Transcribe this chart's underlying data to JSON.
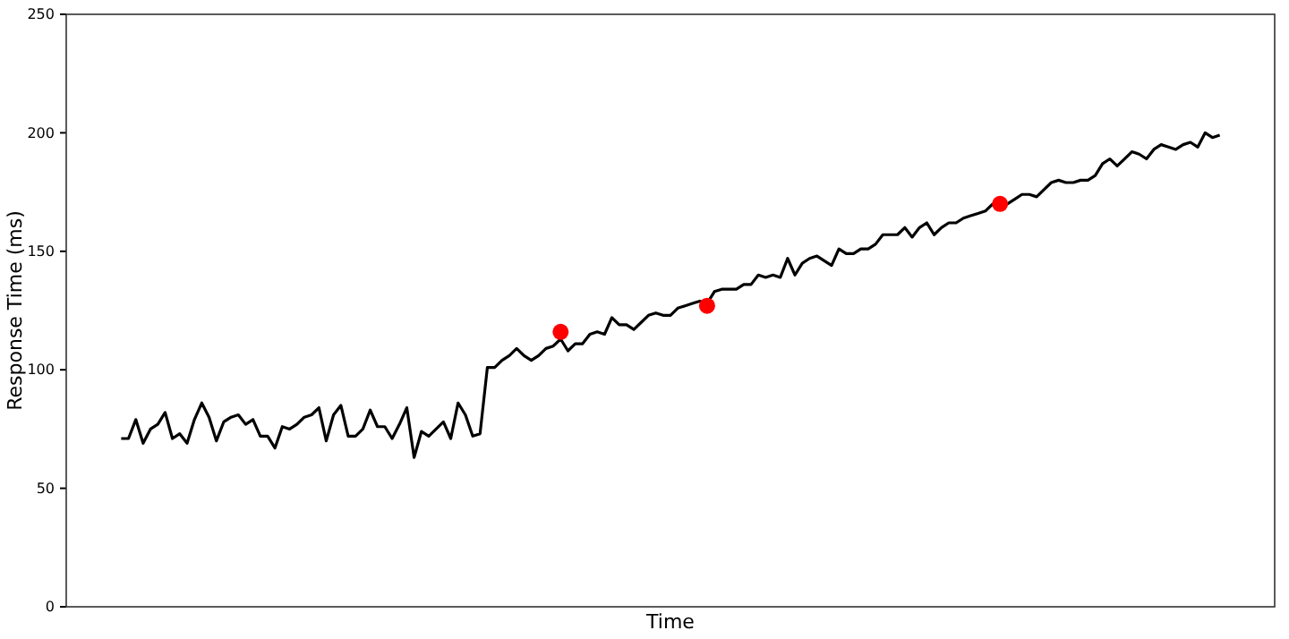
{
  "chart_data": {
    "type": "line",
    "xlabel": "Time",
    "ylabel": "Response Time (ms)",
    "categories": [
      null,
      null,
      null,
      null,
      null,
      null,
      null,
      null,
      null,
      null,
      null,
      null,
      null,
      null,
      null,
      null,
      null,
      null,
      null,
      null,
      null,
      null,
      null,
      null,
      null,
      null,
      null,
      null,
      null,
      null,
      null,
      null,
      null,
      null,
      null,
      null,
      null,
      null,
      null,
      null,
      null,
      null,
      null,
      null,
      null,
      null,
      null,
      null,
      null,
      null,
      null,
      null,
      null,
      null,
      null,
      null,
      null,
      null,
      null,
      null,
      null,
      null,
      null,
      null,
      null,
      null,
      null,
      null,
      null,
      null,
      null,
      null,
      null,
      null,
      null,
      null,
      null,
      null,
      null,
      null,
      null,
      null,
      null,
      null,
      null,
      null,
      null,
      null,
      null,
      null,
      null,
      null,
      null,
      null,
      null,
      null,
      null,
      null,
      null,
      null,
      null,
      null,
      null,
      null,
      null,
      null,
      null,
      null,
      null,
      null,
      null,
      null,
      null,
      null,
      null,
      null,
      null,
      null,
      null,
      null,
      null,
      null,
      null,
      null,
      null,
      null,
      null,
      null,
      null,
      null,
      null,
      null,
      null,
      null,
      null,
      null,
      null,
      null,
      null,
      null,
      null,
      null,
      null,
      null,
      null,
      null,
      null,
      null,
      null,
      null,
      null
    ],
    "ylim": [
      0,
      250
    ],
    "yticks": [
      0,
      50,
      100,
      150,
      200,
      250
    ],
    "tick_labels": "y",
    "grid": false,
    "series": [
      {
        "color": "#000000",
        "marker": "none",
        "values": [
          71,
          71,
          79,
          69,
          75,
          77,
          82,
          71,
          73,
          69,
          79,
          86,
          80,
          70,
          78,
          80,
          81,
          77,
          79,
          72,
          72,
          67,
          76,
          75,
          77,
          80,
          81,
          84,
          70,
          81,
          85,
          72,
          72,
          75,
          83,
          76,
          76,
          71,
          77,
          84,
          63,
          74,
          72,
          75,
          78,
          71,
          86,
          81,
          72,
          73,
          101,
          101,
          104,
          106,
          109,
          106,
          104,
          106,
          109,
          110,
          113,
          108,
          111,
          111,
          115,
          116,
          115,
          122,
          119,
          119,
          117,
          120,
          123,
          124,
          123,
          123,
          126,
          127,
          128,
          129,
          128,
          133,
          134,
          134,
          134,
          136,
          136,
          140,
          139,
          140,
          139,
          147,
          140,
          145,
          147,
          148,
          146,
          144,
          151,
          149,
          149,
          151,
          151,
          153,
          157,
          157,
          157,
          160,
          156,
          160,
          162,
          157,
          160,
          162,
          162,
          164,
          165,
          166,
          167,
          170,
          170,
          170,
          172,
          174,
          174,
          173,
          176,
          179,
          180,
          179,
          179,
          180,
          180,
          182,
          187,
          189,
          186,
          189,
          192,
          191,
          189,
          193,
          195,
          194,
          193,
          195,
          196,
          194,
          200,
          198,
          199
        ]
      },
      {
        "type": "scatter",
        "color": "#ff0000",
        "marker": "circle",
        "values": [
          null,
          null,
          null,
          null,
          null,
          null,
          null,
          null,
          null,
          null,
          null,
          null,
          null,
          null,
          null,
          null,
          null,
          null,
          null,
          null,
          null,
          null,
          null,
          null,
          null,
          null,
          null,
          null,
          null,
          null,
          null,
          null,
          null,
          null,
          null,
          null,
          null,
          null,
          null,
          null,
          null,
          null,
          null,
          null,
          null,
          null,
          null,
          null,
          null,
          null,
          null,
          null,
          null,
          null,
          null,
          null,
          null,
          null,
          null,
          null,
          116,
          null,
          null,
          null,
          null,
          null,
          null,
          null,
          null,
          null,
          null,
          null,
          null,
          null,
          null,
          null,
          null,
          null,
          null,
          null,
          127,
          null,
          null,
          null,
          null,
          null,
          null,
          null,
          null,
          null,
          null,
          null,
          null,
          null,
          null,
          null,
          null,
          null,
          null,
          null,
          null,
          null,
          null,
          null,
          null,
          null,
          null,
          null,
          null,
          null,
          null,
          null,
          null,
          null,
          null,
          null,
          null,
          null,
          null,
          null,
          170,
          null,
          null,
          null,
          null,
          null,
          null,
          null,
          null,
          null,
          null,
          null,
          null,
          null,
          null,
          null,
          null,
          null,
          null,
          null,
          null,
          null,
          null,
          null,
          null,
          null,
          null,
          null,
          null,
          null,
          null
        ]
      }
    ]
  }
}
